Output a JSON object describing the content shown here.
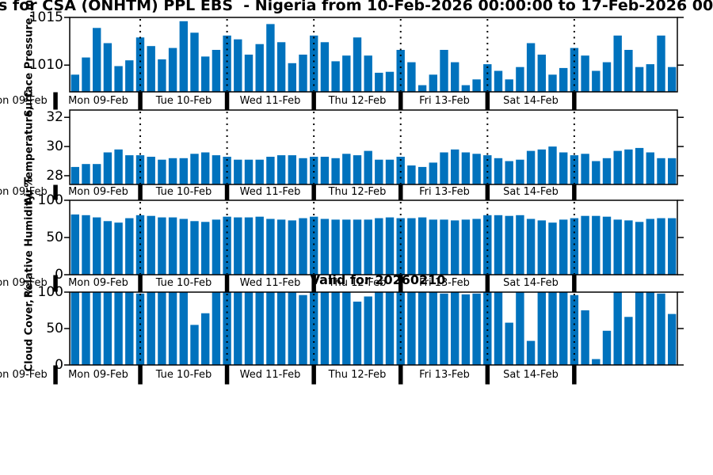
{
  "title": "s for CSA (ONHTM) PPL EBS  - Nigeria from 10-Feb-2026 00:00:00 to 17-Feb-2026 00:00:00",
  "annotation": "Valid for 20260210",
  "colors": {
    "bar": "#0072BD",
    "axis": "#000000"
  },
  "x_axis": {
    "left_clipped_label": "Mon 09-Feb",
    "day_labels": [
      "Mon 09-Feb",
      "Tue 10-Feb",
      "Wed 11-Feb",
      "Thu 12-Feb",
      "Fri 13-Feb",
      "Sat 14-Feb"
    ],
    "bars_per_day": 8,
    "day_boundary_bar_indices": [
      6,
      14,
      22,
      30,
      38,
      46
    ]
  },
  "chart_data": [
    {
      "id": "surface-pressure",
      "type": "bar",
      "ylabel": "Surface Pressure, mb",
      "yticks": [
        1010,
        1015
      ],
      "ylim": [
        1007.2,
        1015.0
      ],
      "values": [
        1009.0,
        1010.8,
        1013.9,
        1012.3,
        1009.9,
        1010.5,
        1012.9,
        1012.0,
        1010.6,
        1011.8,
        1014.6,
        1013.4,
        1010.9,
        1011.6,
        1013.1,
        1012.7,
        1011.1,
        1012.2,
        1014.3,
        1012.4,
        1010.2,
        1011.1,
        1013.1,
        1012.4,
        1010.4,
        1011.0,
        1012.9,
        1011.0,
        1009.2,
        1009.3,
        1011.6,
        1010.3,
        1007.9,
        1009.0,
        1011.6,
        1010.3,
        1007.9,
        1008.5,
        1010.1,
        1009.4,
        1008.5,
        1009.8,
        1012.3,
        1011.1,
        1009.0,
        1009.7,
        1011.8,
        1011.0,
        1009.4,
        1010.3,
        1013.1,
        1011.6,
        1009.8,
        1010.1,
        1013.1,
        1009.8
      ]
    },
    {
      "id": "air-temperature",
      "type": "bar",
      "ylabel": "Air Temperature, °C",
      "yticks": [
        28,
        30,
        32
      ],
      "ylim": [
        27.4,
        32.5
      ],
      "values": [
        28.6,
        28.8,
        28.8,
        29.6,
        29.8,
        29.4,
        29.4,
        29.3,
        29.1,
        29.2,
        29.2,
        29.5,
        29.6,
        29.4,
        29.3,
        29.1,
        29.1,
        29.1,
        29.3,
        29.4,
        29.4,
        29.2,
        29.3,
        29.3,
        29.2,
        29.5,
        29.4,
        29.7,
        29.1,
        29.1,
        29.3,
        28.7,
        28.6,
        28.9,
        29.6,
        29.8,
        29.6,
        29.5,
        29.4,
        29.2,
        29.0,
        29.1,
        29.7,
        29.8,
        30.0,
        29.6,
        29.4,
        29.5,
        29.0,
        29.2,
        29.7,
        29.8,
        29.9,
        29.6,
        29.2,
        29.2
      ]
    },
    {
      "id": "relative-humidity",
      "type": "bar",
      "ylabel": "Relative Humidity, %",
      "yticks": [
        0,
        50,
        100
      ],
      "ylim": [
        0,
        100
      ],
      "values": [
        81,
        80,
        77,
        72,
        70,
        76,
        80,
        79,
        77,
        77,
        75,
        72,
        71,
        74,
        78,
        77,
        77,
        78,
        75,
        74,
        73,
        76,
        78,
        75,
        74,
        74,
        74,
        74,
        76,
        77,
        76,
        76,
        77,
        74,
        74,
        73,
        74,
        75,
        80,
        80,
        79,
        80,
        75,
        73,
        70,
        74,
        76,
        79,
        79,
        78,
        74,
        73,
        71,
        75,
        76,
        76
      ]
    },
    {
      "id": "cloud-cover",
      "type": "bar",
      "ylabel": "Cloud Cover, %",
      "yticks": [
        0,
        50,
        100
      ],
      "ylim": [
        0,
        100
      ],
      "values": [
        100,
        100,
        100,
        100,
        100,
        100,
        98,
        100,
        100,
        100,
        100,
        55,
        71,
        100,
        100,
        100,
        100,
        100,
        100,
        100,
        100,
        96,
        100,
        100,
        100,
        100,
        87,
        94,
        100,
        100,
        100,
        100,
        100,
        100,
        98,
        100,
        97,
        98,
        100,
        100,
        58,
        100,
        33,
        100,
        100,
        100,
        96,
        75,
        8,
        47,
        100,
        66,
        100,
        100,
        98,
        70
      ]
    }
  ]
}
